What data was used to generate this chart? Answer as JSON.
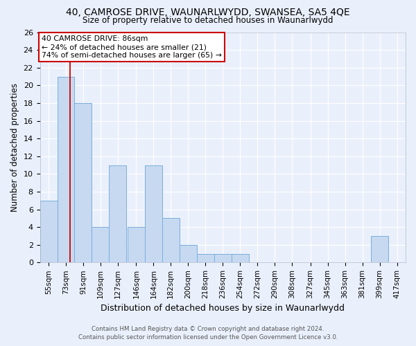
{
  "title": "40, CAMROSE DRIVE, WAUNARLWYDD, SWANSEA, SA5 4QE",
  "subtitle": "Size of property relative to detached houses in Waunarlwydd",
  "xlabel": "Distribution of detached houses by size in Waunarlwydd",
  "ylabel": "Number of detached properties",
  "bin_labels": [
    "55sqm",
    "73sqm",
    "91sqm",
    "109sqm",
    "127sqm",
    "146sqm",
    "164sqm",
    "182sqm",
    "200sqm",
    "218sqm",
    "236sqm",
    "254sqm",
    "272sqm",
    "290sqm",
    "308sqm",
    "327sqm",
    "345sqm",
    "363sqm",
    "381sqm",
    "399sqm",
    "417sqm"
  ],
  "bar_values": [
    7,
    21,
    18,
    4,
    11,
    4,
    11,
    5,
    2,
    1,
    1,
    1,
    0,
    0,
    0,
    0,
    0,
    0,
    0,
    3,
    0
  ],
  "bar_color": "#c6d9f0",
  "bar_edge_color": "#7aaedb",
  "background_color": "#eaf0fb",
  "grid_color": "#ffffff",
  "annotation_line1": "40 CAMROSE DRIVE: 86sqm",
  "annotation_line2": "← 24% of detached houses are smaller (21)",
  "annotation_line3": "74% of semi-detached houses are larger (65) →",
  "annotation_box_color": "#ffffff",
  "annotation_box_edge": "#cc0000",
  "vline_x": 86,
  "vline_color": "#cc0000",
  "ylim": [
    0,
    26
  ],
  "yticks": [
    0,
    2,
    4,
    6,
    8,
    10,
    12,
    14,
    16,
    18,
    20,
    22,
    24,
    26
  ],
  "footer_line1": "Contains HM Land Registry data © Crown copyright and database right 2024.",
  "footer_line2": "Contains public sector information licensed under the Open Government Licence v3.0.",
  "bin_edges": [
    55,
    73,
    91,
    109,
    127,
    146,
    164,
    182,
    200,
    218,
    236,
    254,
    272,
    290,
    308,
    327,
    345,
    363,
    381,
    399,
    417,
    435
  ]
}
